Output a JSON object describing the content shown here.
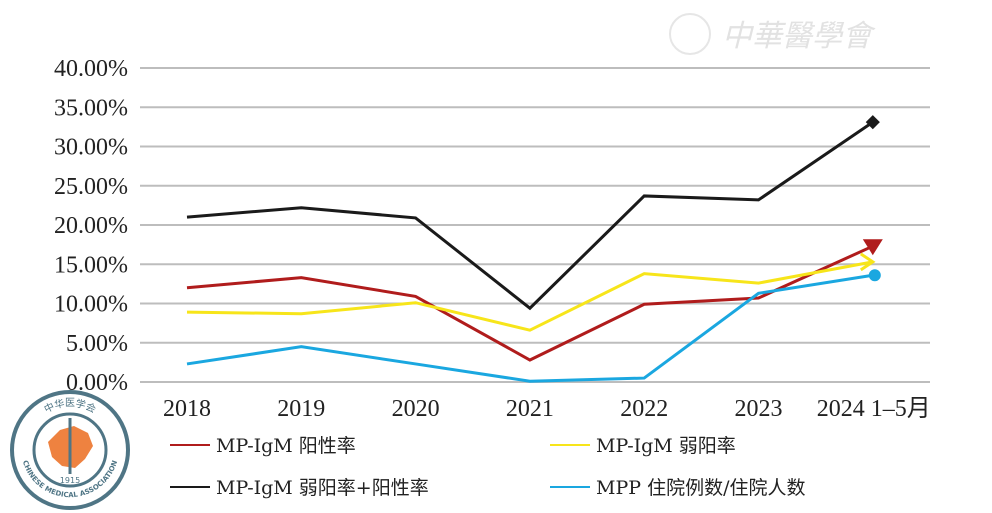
{
  "chart_data": {
    "type": "line",
    "title": "",
    "xlabel": "",
    "ylabel": "",
    "categories": [
      "2018",
      "2019",
      "2020",
      "2021",
      "2022",
      "2023",
      "2024 1–5月"
    ],
    "y_ticks": [
      "0.00%",
      "5.00%",
      "10.00%",
      "15.00%",
      "20.00%",
      "25.00%",
      "30.00%",
      "35.00%",
      "40.00%"
    ],
    "ylim": [
      0,
      40
    ],
    "y_unit": "%",
    "grid": true,
    "legend_position": "bottom",
    "series": [
      {
        "name": "MP-IgM 阳性率",
        "color": "#b01c1c",
        "end_marker": "triangle-down",
        "values": [
          12.0,
          13.3,
          10.9,
          2.8,
          9.9,
          10.7,
          17.3
        ]
      },
      {
        "name": "MP-IgM 弱阳率",
        "color": "#f7e51a",
        "end_marker": "arrow",
        "values": [
          8.9,
          8.7,
          10.1,
          6.6,
          13.8,
          12.6,
          15.3
        ]
      },
      {
        "name": "MP-IgM 弱阳率+阳性率",
        "color": "#1a1a1a",
        "end_marker": "diamond",
        "values": [
          21.0,
          22.2,
          20.9,
          9.4,
          23.7,
          23.2,
          33.1
        ]
      },
      {
        "name": "MPP 住院例数/住院人数",
        "color": "#1aa7e0",
        "end_marker": "circle",
        "values": [
          2.3,
          4.5,
          2.3,
          0.1,
          0.5,
          11.3,
          13.6
        ]
      }
    ],
    "legend_order": [
      0,
      1,
      2,
      3
    ]
  },
  "watermark": {
    "text": "中華醫學會",
    "seal_top": "中华医学会",
    "seal_bottom": "CHINESE MEDICAL ASSOCIATION",
    "seal_year": "1915"
  }
}
